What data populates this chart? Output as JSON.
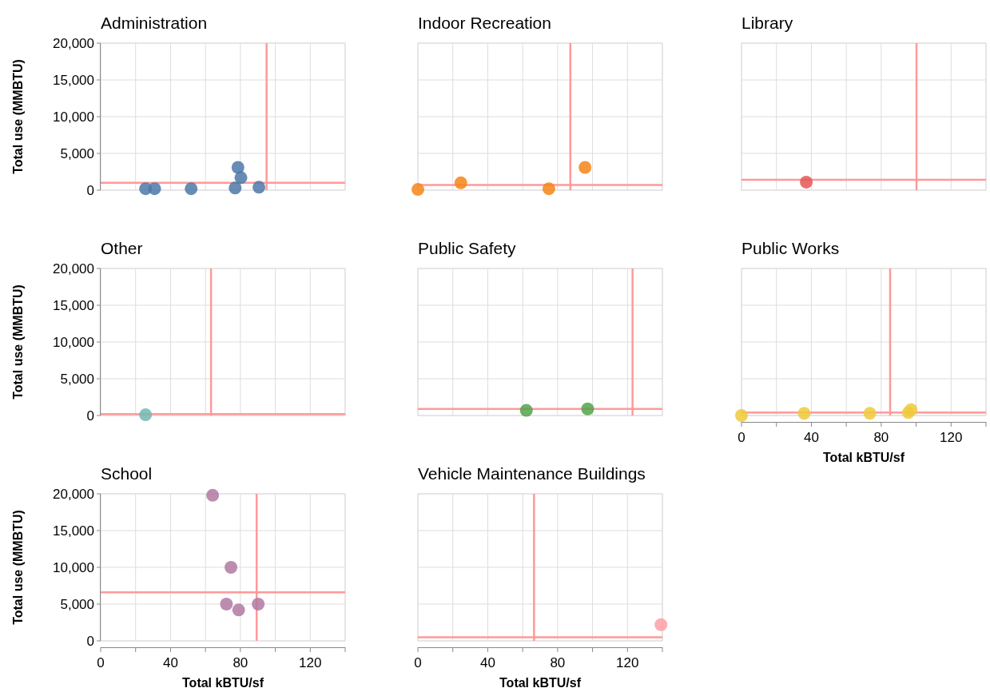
{
  "chart_data": [
    {
      "type": "scatter",
      "title": "Administration",
      "ylabel": "Total use (MMBTU)",
      "tick_labels": "y",
      "grid": true,
      "marker": "circle",
      "xlim": [
        0,
        140
      ],
      "xticks": [
        0,
        20,
        40,
        60,
        80,
        100,
        120,
        140
      ],
      "ylim": [
        0,
        20000
      ],
      "yticks": [
        0,
        {
          "value": 5000,
          "label": "5,000"
        },
        {
          "value": 10000,
          "label": "10,000"
        },
        {
          "value": 15000,
          "label": "15,000"
        },
        {
          "value": 20000,
          "label": "20,000"
        }
      ],
      "series": [
        {
          "color": "#4c78a8",
          "x": [
            25.7,
            30.9,
            51.8,
            77.0,
            78.6,
            80.3,
            90.6
          ],
          "values": [
            200,
            200,
            200,
            300,
            3100,
            1700,
            400
          ]
        }
      ],
      "ref_lines": [
        {
          "axis": "x",
          "value": 95.0,
          "color": "#ff9999"
        },
        {
          "axis": "y",
          "value": 1000,
          "color": "#ff9999"
        }
      ]
    },
    {
      "type": "scatter",
      "title": "Indoor Recreation",
      "tick_labels": false,
      "grid": true,
      "marker": "circle",
      "xlim": [
        0,
        140
      ],
      "xticks": [
        0,
        20,
        40,
        60,
        80,
        100,
        120,
        140
      ],
      "ylim": [
        0,
        20000
      ],
      "yticks": [
        0,
        5000,
        10000,
        15000,
        20000
      ],
      "series": [
        {
          "color": "#f58518",
          "x": [
            0,
            24.6,
            75.0,
            95.7
          ],
          "values": [
            100,
            1000,
            200,
            3100
          ]
        }
      ],
      "ref_lines": [
        {
          "axis": "x",
          "value": 87.3,
          "color": "#ff9999"
        },
        {
          "axis": "y",
          "value": 700,
          "color": "#ff9999"
        }
      ]
    },
    {
      "type": "scatter",
      "title": "Library",
      "tick_labels": false,
      "grid": true,
      "marker": "circle",
      "xlim": [
        0,
        140
      ],
      "xticks": [
        0,
        20,
        40,
        60,
        80,
        100,
        120,
        140
      ],
      "ylim": [
        0,
        20000
      ],
      "yticks": [
        0,
        5000,
        10000,
        15000,
        20000
      ],
      "series": [
        {
          "color": "#e45756",
          "x": [
            37.1
          ],
          "values": [
            1100
          ]
        }
      ],
      "ref_lines": [
        {
          "axis": "x",
          "value": 100.2,
          "color": "#ff9999"
        },
        {
          "axis": "y",
          "value": 1400,
          "color": "#ff9999"
        }
      ]
    },
    {
      "type": "scatter",
      "title": "Other",
      "ylabel": "Total use (MMBTU)",
      "tick_labels": "y",
      "grid": true,
      "marker": "circle",
      "xlim": [
        0,
        140
      ],
      "xticks": [
        0,
        20,
        40,
        60,
        80,
        100,
        120,
        140
      ],
      "ylim": [
        0,
        20000
      ],
      "yticks": [
        0,
        {
          "value": 5000,
          "label": "5,000"
        },
        {
          "value": 10000,
          "label": "10,000"
        },
        {
          "value": 15000,
          "label": "15,000"
        },
        {
          "value": 20000,
          "label": "20,000"
        }
      ],
      "series": [
        {
          "color": "#72b7b2",
          "x": [
            25.7
          ],
          "values": [
            100
          ]
        }
      ],
      "ref_lines": [
        {
          "axis": "x",
          "value": 63.2,
          "color": "#ff9999"
        },
        {
          "axis": "y",
          "value": 200,
          "color": "#ff9999"
        }
      ]
    },
    {
      "type": "scatter",
      "title": "Public Safety",
      "tick_labels": false,
      "grid": true,
      "marker": "circle",
      "xlim": [
        0,
        140
      ],
      "xticks": [
        0,
        20,
        40,
        60,
        80,
        100,
        120,
        140
      ],
      "ylim": [
        0,
        20000
      ],
      "yticks": [
        0,
        5000,
        10000,
        15000,
        20000
      ],
      "series": [
        {
          "color": "#54a24b",
          "x": [
            62.1,
            97.2
          ],
          "values": [
            700,
            900
          ]
        }
      ],
      "ref_lines": [
        {
          "axis": "x",
          "value": 122.9,
          "color": "#ff9999"
        },
        {
          "axis": "y",
          "value": 900,
          "color": "#ff9999"
        }
      ]
    },
    {
      "type": "scatter",
      "title": "Public Works",
      "xlabel": "Total kBTU/sf",
      "tick_labels": "x",
      "grid": true,
      "marker": "circle",
      "xlim": [
        0,
        140
      ],
      "xticks": [
        0,
        {
          "value": 20,
          "label": null
        },
        40,
        {
          "value": 60,
          "label": null
        },
        80,
        {
          "value": 100,
          "label": null
        },
        120,
        {
          "value": 140,
          "label": null
        }
      ],
      "ylim": [
        0,
        20000
      ],
      "yticks": [
        0,
        5000,
        10000,
        15000,
        20000
      ],
      "series": [
        {
          "color": "#eeca3b",
          "x": [
            0,
            35.9,
            73.5,
            95.5,
            97.1
          ],
          "values": [
            0,
            300,
            300,
            400,
            800
          ]
        }
      ],
      "ref_lines": [
        {
          "axis": "x",
          "value": 85.1,
          "color": "#ff9999"
        },
        {
          "axis": "y",
          "value": 400,
          "color": "#ff9999"
        }
      ]
    },
    {
      "type": "scatter",
      "title": "School",
      "xlabel": "Total kBTU/sf",
      "ylabel": "Total use (MMBTU)",
      "grid": true,
      "marker": "circle",
      "xlim": [
        0,
        140
      ],
      "xticks": [
        0,
        {
          "value": 20,
          "label": null
        },
        40,
        {
          "value": 60,
          "label": null
        },
        80,
        {
          "value": 100,
          "label": null
        },
        120,
        {
          "value": 140,
          "label": null
        }
      ],
      "ylim": [
        0,
        20000
      ],
      "yticks": [
        0,
        {
          "value": 5000,
          "label": "5,000"
        },
        {
          "value": 10000,
          "label": "10,000"
        },
        {
          "value": 15000,
          "label": "15,000"
        },
        {
          "value": 20000,
          "label": "20,000"
        }
      ],
      "series": [
        {
          "color": "#b279a2",
          "x": [
            64.1,
            74.6,
            72.0,
            79.0,
            90.2
          ],
          "values": [
            19800,
            10000,
            5000,
            4200,
            5000
          ]
        }
      ],
      "ref_lines": [
        {
          "axis": "x",
          "value": 89.3,
          "color": "#ff9999"
        },
        {
          "axis": "y",
          "value": 6600,
          "color": "#ff9999"
        }
      ]
    },
    {
      "type": "scatter",
      "title": "Vehicle Maintenance Buildings",
      "xlabel": "Total kBTU/sf",
      "tick_labels": "x",
      "grid": true,
      "marker": "circle",
      "xlim": [
        0,
        140
      ],
      "xticks": [
        0,
        {
          "value": 20,
          "label": null
        },
        40,
        {
          "value": 60,
          "label": null
        },
        80,
        {
          "value": 100,
          "label": null
        },
        120,
        {
          "value": 140,
          "label": null
        }
      ],
      "ylim": [
        0,
        20000
      ],
      "yticks": [
        0,
        5000,
        10000,
        15000,
        20000
      ],
      "series": [
        {
          "color": "#ff9da6",
          "x": [
            139.2
          ],
          "values": [
            2200
          ]
        }
      ],
      "ref_lines": [
        {
          "axis": "x",
          "value": 66.5,
          "color": "#ff9999"
        },
        {
          "axis": "y",
          "value": 500,
          "color": "#ff9999"
        }
      ]
    }
  ]
}
